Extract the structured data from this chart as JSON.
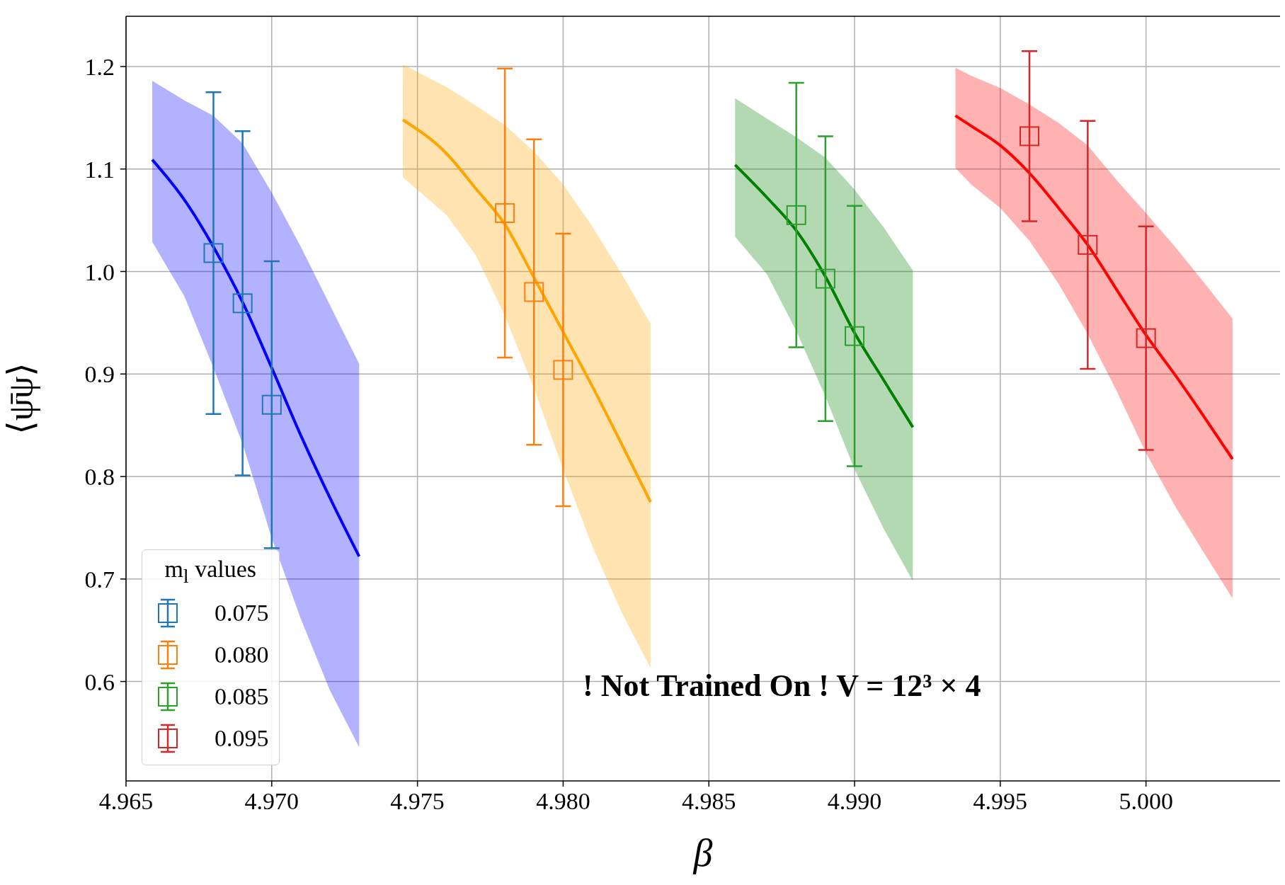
{
  "chart_data": {
    "type": "scatter",
    "xlabel": "β",
    "ylabel": "⟨ψ̄ψ⟩",
    "legend_title": "m$_{l}$ values",
    "legend": "bottom left",
    "grid": true,
    "annotations": [
      "! Not Trained On ! V = 12³ × 4"
    ],
    "xlim": [
      4.965,
      5.0046
    ],
    "xticks": [
      {
        "value": 4.965,
        "label": "4.965"
      },
      {
        "value": 4.97,
        "label": "4.970"
      },
      {
        "value": 4.975,
        "label": "4.975"
      },
      {
        "value": 4.98,
        "label": "4.980"
      },
      {
        "value": 4.985,
        "label": "4.985"
      },
      {
        "value": 4.99,
        "label": "4.990"
      },
      {
        "value": 4.995,
        "label": "4.995"
      },
      {
        "value": 5.0,
        "label": "5.000"
      }
    ],
    "ylim": [
      0.503,
      1.249
    ],
    "yticks": [
      {
        "value": 0.6,
        "label": "0.6"
      },
      {
        "value": 0.7,
        "label": "0.7"
      },
      {
        "value": 0.8,
        "label": "0.8"
      },
      {
        "value": 0.9,
        "label": "0.9"
      },
      {
        "value": 1.0,
        "label": "1.0"
      },
      {
        "value": 1.1,
        "label": "1.1"
      },
      {
        "value": 1.2,
        "label": "1.2"
      }
    ],
    "series": [
      {
        "type": "line",
        "color": "#0000ff",
        "x": [
          4.9659,
          4.967,
          4.968,
          4.969,
          4.97,
          4.971,
          4.972,
          4.973
        ],
        "values": [
          1.109,
          1.07,
          1.024,
          0.97,
          0.906,
          0.84,
          0.779,
          0.722
        ],
        "upper": [
          1.186,
          1.167,
          1.152,
          1.125,
          1.077,
          1.024,
          0.967,
          0.91
        ],
        "lower": [
          1.029,
          0.976,
          0.906,
          0.832,
          0.74,
          0.661,
          0.591,
          0.536
        ]
      },
      {
        "type": "line",
        "color": "#ffa500",
        "x": [
          4.9745,
          4.976,
          4.977,
          4.978,
          4.979,
          4.98,
          4.981,
          4.982,
          4.983
        ],
        "values": [
          1.148,
          1.115,
          1.081,
          1.046,
          0.994,
          0.941,
          0.888,
          0.832,
          0.775
        ],
        "upper": [
          1.202,
          1.18,
          1.162,
          1.143,
          1.117,
          1.085,
          1.044,
          0.998,
          0.949
        ],
        "lower": [
          1.092,
          1.055,
          1.016,
          0.957,
          0.886,
          0.807,
          0.732,
          0.668,
          0.613
        ]
      },
      {
        "type": "line",
        "color": "#008000",
        "x": [
          4.9859,
          4.987,
          4.988,
          4.989,
          4.99,
          4.991,
          4.992
        ],
        "values": [
          1.104,
          1.072,
          1.04,
          0.995,
          0.94,
          0.894,
          0.848
        ],
        "upper": [
          1.169,
          1.149,
          1.131,
          1.111,
          1.08,
          1.043,
          1.001
        ],
        "lower": [
          1.034,
          0.997,
          0.942,
          0.878,
          0.807,
          0.749,
          0.698
        ]
      },
      {
        "type": "line",
        "color": "#ff0000",
        "x": [
          4.99346,
          4.994,
          4.995,
          4.996,
          4.997,
          4.998,
          4.999,
          5.0,
          5.001,
          5.002,
          5.00297
        ],
        "values": [
          1.152,
          1.142,
          1.123,
          1.096,
          1.062,
          1.026,
          0.982,
          0.938,
          0.899,
          0.858,
          0.817
        ],
        "upper": [
          1.199,
          1.191,
          1.179,
          1.163,
          1.145,
          1.123,
          1.089,
          1.057,
          1.024,
          0.989,
          0.954
        ],
        "lower": [
          1.101,
          1.085,
          1.062,
          1.03,
          0.988,
          0.939,
          0.883,
          0.823,
          0.771,
          0.725,
          0.681
        ]
      },
      {
        "name": "0.075",
        "marker": "square",
        "color": "#1f77b4",
        "x": [
          4.968,
          4.969,
          4.97
        ],
        "values": [
          1.018,
          0.969,
          0.87
        ],
        "errors": [
          0.157,
          0.168,
          0.14
        ]
      },
      {
        "name": "0.080",
        "marker": "square",
        "color": "#ff7f0e",
        "x": [
          4.978,
          4.979,
          4.98
        ],
        "values": [
          1.057,
          0.98,
          0.904
        ],
        "errors": [
          0.141,
          0.149,
          0.133
        ]
      },
      {
        "name": "0.085",
        "marker": "square",
        "color": "#2ca02c",
        "x": [
          4.988,
          4.989,
          4.99
        ],
        "values": [
          1.055,
          0.993,
          0.937
        ],
        "errors": [
          0.129,
          0.139,
          0.127
        ]
      },
      {
        "name": "0.095",
        "marker": "square",
        "color": "#d62728",
        "x": [
          4.996,
          4.998,
          5.0
        ],
        "values": [
          1.132,
          1.026,
          0.935
        ],
        "errors": [
          0.083,
          0.121,
          0.109
        ]
      }
    ]
  }
}
